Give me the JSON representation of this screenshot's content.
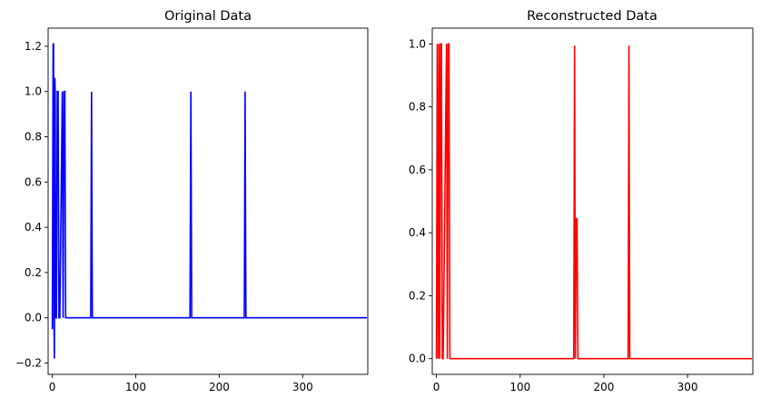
{
  "chart_data": [
    {
      "type": "line",
      "title": "Original Data",
      "xlabel": "",
      "ylabel": "",
      "xlim": [
        -5,
        378
      ],
      "ylim": [
        -0.25,
        1.28
      ],
      "xticks": [
        0,
        100,
        200,
        300
      ],
      "yticks": [
        -0.2,
        0.0,
        0.2,
        0.4,
        0.6,
        0.8,
        1.0,
        1.2
      ],
      "ytick_labels": [
        "−0.2",
        "0.0",
        "0.2",
        "0.4",
        "0.6",
        "0.8",
        "1.0",
        "1.2"
      ],
      "grid": false,
      "series": [
        {
          "color": "#0000ff",
          "x": [
            0,
            1,
            1.5,
            2,
            2.5,
            3,
            3.5,
            4,
            5,
            6,
            7,
            8,
            9,
            12,
            13,
            14,
            15,
            16,
            46,
            47,
            48,
            165,
            166,
            167,
            230,
            231,
            232,
            377
          ],
          "y": [
            -0.05,
            1.21,
            1.21,
            0.0,
            -0.18,
            1.06,
            1.0,
            0.0,
            0.0,
            1.0,
            1.0,
            0.0,
            0.0,
            1.0,
            0.0,
            1.0,
            1.0,
            0.0,
            0.0,
            1.0,
            0.0,
            0.0,
            1.0,
            0.0,
            0.0,
            1.0,
            0.0,
            0.0
          ]
        }
      ]
    },
    {
      "type": "line",
      "title": "Reconstructed Data",
      "xlabel": "",
      "ylabel": "",
      "xlim": [
        -5,
        378
      ],
      "ylim": [
        -0.05,
        1.05
      ],
      "xticks": [
        0,
        100,
        200,
        300
      ],
      "yticks": [
        0.0,
        0.2,
        0.4,
        0.6,
        0.8,
        1.0
      ],
      "ytick_labels": [
        "0.0",
        "0.2",
        "0.4",
        "0.6",
        "0.8",
        "1.0"
      ],
      "grid": false,
      "series": [
        {
          "color": "#ff0000",
          "x": [
            0,
            1,
            2,
            3,
            4,
            5,
            6,
            7,
            8,
            12,
            13,
            14,
            15,
            16,
            164,
            165,
            166,
            167,
            168,
            169,
            229,
            230,
            231,
            377
          ],
          "y": [
            0.0,
            1.0,
            0.0,
            1.0,
            0.0,
            1.0,
            1.0,
            0.0,
            0.0,
            1.0,
            0.0,
            1.0,
            1.0,
            0.0,
            0.0,
            0.995,
            0.0,
            0.445,
            0.445,
            0.0,
            0.0,
            0.995,
            0.0,
            0.0
          ]
        }
      ]
    }
  ]
}
